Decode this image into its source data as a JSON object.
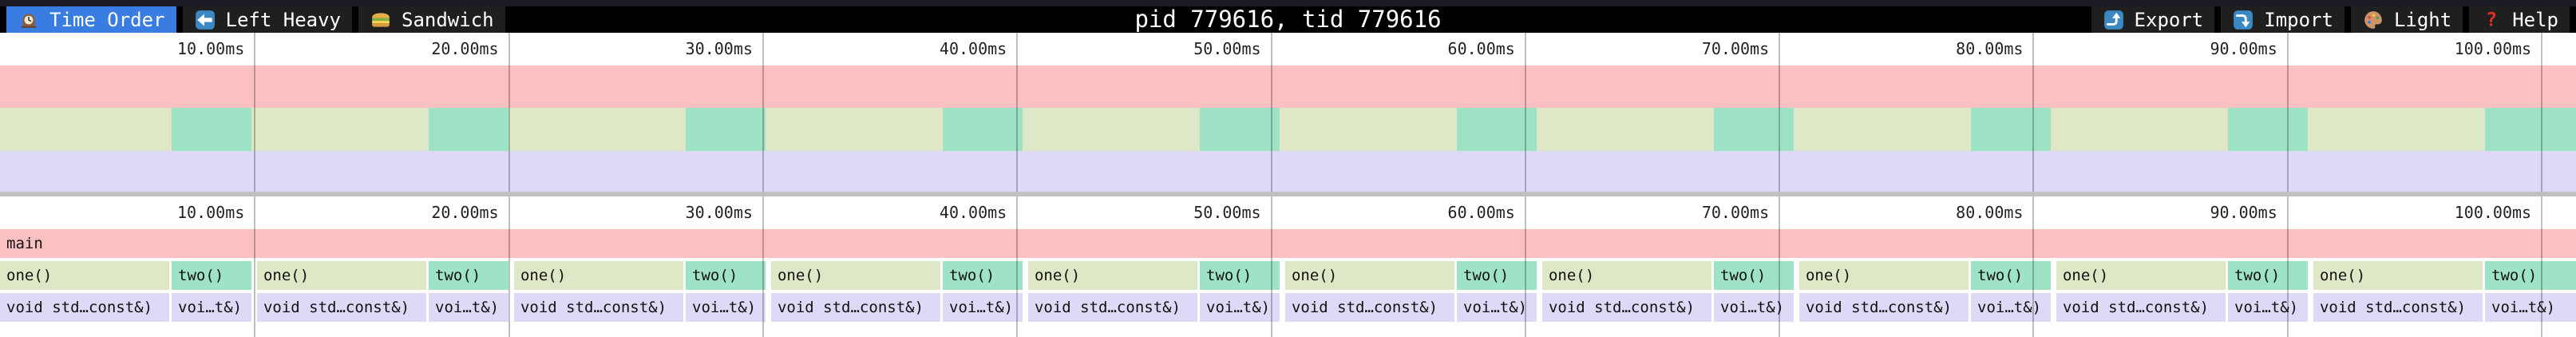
{
  "toolbar": {
    "title": "pid 779616, tid 779616",
    "tabs": [
      {
        "label": "Time Order",
        "icon": "clock-icon",
        "active": true
      },
      {
        "label": "Left Heavy",
        "icon": "left-arrow-icon",
        "active": false
      },
      {
        "label": "Sandwich",
        "icon": "sandwich-icon",
        "active": false
      }
    ],
    "actions": [
      {
        "label": "Export",
        "icon": "export-icon"
      },
      {
        "label": "Import",
        "icon": "import-icon"
      },
      {
        "label": "Light",
        "icon": "palette-icon"
      },
      {
        "label": "Help",
        "icon": "help-icon"
      }
    ],
    "colors": {
      "bar_bg": "#000000",
      "button_bg": "#1f1f1f",
      "active_tab": "#3a7de2"
    }
  },
  "timeline": {
    "total_ms": 101.38,
    "ticks_ms": [
      10,
      20,
      30,
      40,
      50,
      60,
      70,
      80,
      90,
      100
    ],
    "tick_labels": [
      "10.00ms",
      "20.00ms",
      "30.00ms",
      "40.00ms",
      "50.00ms",
      "60.00ms",
      "70.00ms",
      "80.00ms",
      "90.00ms",
      "100.00ms"
    ]
  },
  "flamegraph": {
    "periods": 10,
    "period_ms": 10.116,
    "frames": {
      "main": {
        "label": "main",
        "color": "#fbc1c2"
      },
      "one": {
        "label": "one()",
        "color": "#dfe8c6",
        "start_ms": 0.0,
        "dur_ms": 6.66
      },
      "two": {
        "label": "two()",
        "color": "#9fe3c7",
        "start_ms": 6.755,
        "dur_ms": 3.142
      },
      "one_child": {
        "label": "void std…const&)",
        "color": "#dcdaf6"
      },
      "two_child": {
        "label": "voi…t&)",
        "color": "#dcdaf6"
      }
    }
  }
}
